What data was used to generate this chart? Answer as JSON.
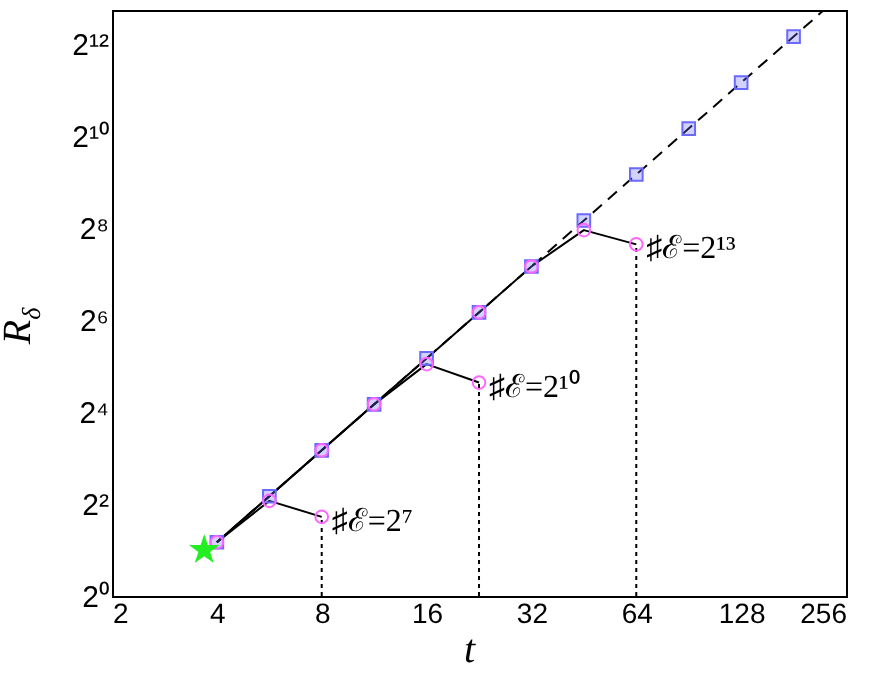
{
  "chart_data": {
    "type": "line",
    "xlabel": "t",
    "ylabel": "R$_{δ}$",
    "log": "xy",
    "grid": false,
    "xlim": [
      2,
      256
    ],
    "ylim": [
      1,
      6889
    ],
    "xticks": [
      2,
      4,
      8,
      16,
      32,
      64,
      128,
      256
    ],
    "yticks": [
      {
        "value": 1,
        "label": "2⁰"
      },
      {
        "value": 4,
        "label": "2²"
      },
      {
        "value": 16,
        "label": "2⁴"
      },
      {
        "value": 64,
        "label": "2⁶"
      },
      {
        "value": 256,
        "label": "2⁸"
      },
      {
        "value": 1024,
        "label": "2¹⁰"
      },
      {
        "value": 4096,
        "label": "2¹²"
      }
    ],
    "series": [
      {
        "color": "#000000",
        "line_style": "dashed",
        "x": [
          4,
          220
        ],
        "values": [
          2.25,
          6806
        ]
      },
      {
        "color": "#000000",
        "line_style": "dotted",
        "x": [
          8,
          8
        ],
        "values": [
          1,
          3.3
        ]
      },
      {
        "color": "#000000",
        "line_style": "dotted",
        "x": [
          22.63,
          22.63
        ],
        "values": [
          1,
          25
        ]
      },
      {
        "color": "#000000",
        "line_style": "dotted",
        "x": [
          64,
          64
        ],
        "values": [
          1,
          201
        ]
      },
      {
        "color": "#000000",
        "line_style": "solid",
        "x": [
          4,
          5.66,
          8
        ],
        "values": [
          2.25,
          4.2,
          3.3
        ]
      },
      {
        "color": "#000000",
        "line_style": "solid",
        "x": [
          4,
          5.66,
          8,
          11.31,
          16,
          22.63
        ],
        "values": [
          2.25,
          4.5,
          9,
          18,
          33,
          25
        ]
      },
      {
        "color": "#000000",
        "line_style": "solid",
        "x": [
          4,
          5.66,
          8,
          11.31,
          16,
          22.63,
          32,
          45.25,
          64
        ],
        "values": [
          2.25,
          4.5,
          9,
          18,
          36,
          72,
          144,
          249,
          201
        ]
      },
      {
        "type": "scatter",
        "color": "#6a6aff",
        "marker": "square",
        "x": [
          4,
          5.66,
          8,
          11.31,
          16,
          22.63,
          32,
          45.25,
          64,
          90.51,
          128,
          181.02
        ],
        "values": [
          2.25,
          4.5,
          9,
          18,
          36,
          72,
          144,
          288,
          576,
          1152,
          2304,
          4608
        ]
      },
      {
        "type": "scatter",
        "color": "#ff66ff",
        "marker": "circle",
        "x": [
          4,
          5.66,
          8,
          11.31,
          16,
          22.63,
          32,
          45.25,
          8,
          22.63,
          64
        ],
        "values": [
          2.25,
          4.2,
          9,
          18,
          33,
          72,
          144,
          249,
          3.3,
          25,
          201
        ]
      },
      {
        "type": "scatter",
        "color": "#22ee22",
        "marker": "star",
        "x": [
          3.68
        ],
        "values": [
          2
        ]
      }
    ],
    "annotations": [
      {
        "text": "♯ℰ=2⁷",
        "x": 8,
        "y": 3.3
      },
      {
        "text": "♯ℰ=2¹⁰",
        "x": 22.63,
        "y": 25
      },
      {
        "text": "♯ℰ=2¹³",
        "x": 64,
        "y": 201
      }
    ]
  }
}
